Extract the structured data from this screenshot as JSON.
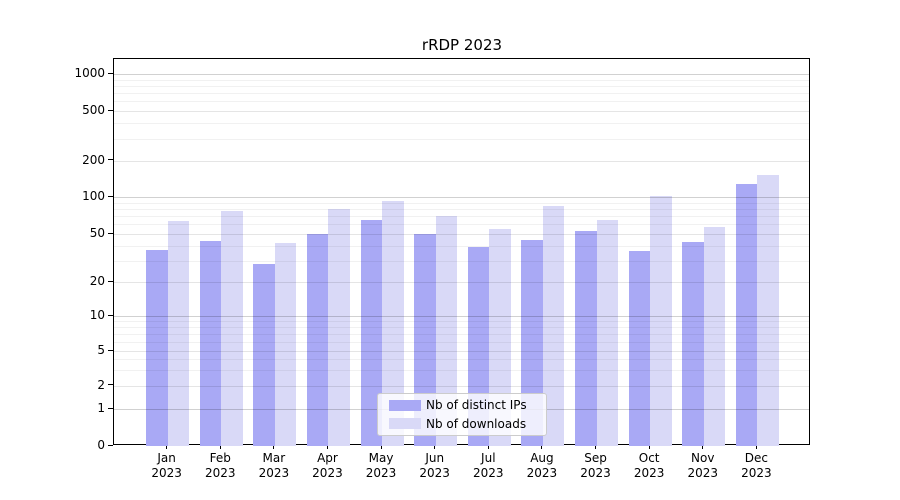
{
  "chart_data": {
    "type": "bar",
    "title": "rRDP 2023",
    "categories": [
      "Jan 2023",
      "Feb 2023",
      "Mar 2023",
      "Apr 2023",
      "May 2023",
      "Jun 2023",
      "Jul 2023",
      "Aug 2023",
      "Sep 2023",
      "Oct 2023",
      "Nov 2023",
      "Dec 2023"
    ],
    "series": [
      {
        "name": "Nb of distinct IPs",
        "color": "#a9a9f5",
        "values": [
          37,
          44,
          28,
          50,
          65,
          50,
          39,
          45,
          53,
          36,
          43,
          128
        ]
      },
      {
        "name": "Nb of downloads",
        "color": "#d9d9f7",
        "values": [
          64,
          77,
          42,
          80,
          93,
          70,
          55,
          84,
          65,
          101,
          57,
          153
        ]
      }
    ],
    "xlabel": "",
    "ylabel": "",
    "y_ticks": [
      0,
      1,
      2,
      5,
      10,
      20,
      50,
      100,
      200,
      500,
      1000
    ],
    "yscale": "log (with 0 baseline, symlog-style)",
    "ylim": [
      0,
      1300
    ],
    "grid": "horizontal major and log-minor gridlines, drawn over bars",
    "legend_position": "inside plot, lower center",
    "frame": "full black border on all four sides",
    "background_color": "#ffffff"
  }
}
